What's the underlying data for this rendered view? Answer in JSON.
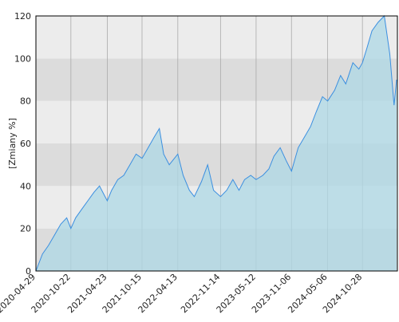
{
  "chart_data": {
    "type": "area",
    "y_label": "[Zmiany %]",
    "x": [
      "2020-04-29",
      "2020-06-01",
      "2020-07-01",
      "2020-08-01",
      "2020-09-01",
      "2020-10-01",
      "2020-10-22",
      "2020-11-15",
      "2020-12-15",
      "2021-01-15",
      "2021-02-15",
      "2021-03-15",
      "2021-04-23",
      "2021-05-15",
      "2021-06-15",
      "2021-07-15",
      "2021-08-15",
      "2021-09-15",
      "2021-10-15",
      "2021-11-15",
      "2021-12-15",
      "2022-01-10",
      "2022-02-01",
      "2022-03-01",
      "2022-04-13",
      "2022-05-10",
      "2022-06-10",
      "2022-07-05",
      "2022-08-10",
      "2022-09-10",
      "2022-10-10",
      "2022-11-14",
      "2022-12-15",
      "2023-01-15",
      "2023-02-15",
      "2023-03-15",
      "2023-04-15",
      "2023-05-12",
      "2023-06-15",
      "2023-07-15",
      "2023-08-10",
      "2023-09-10",
      "2023-10-10",
      "2023-11-06",
      "2023-12-10",
      "2024-01-10",
      "2024-02-10",
      "2024-03-10",
      "2024-04-10",
      "2024-05-06",
      "2024-06-10",
      "2024-07-10",
      "2024-08-05",
      "2024-09-10",
      "2024-10-10",
      "2024-10-28",
      "2024-11-20",
      "2024-12-15",
      "2025-01-15",
      "2025-02-15",
      "2025-03-15",
      "2025-04-05",
      "2025-04-18"
    ],
    "series": [
      {
        "name": "Zmiany",
        "color": "#3b8fe0",
        "fill": "#add8e6",
        "values": [
          0,
          8,
          12,
          17,
          22,
          25,
          20,
          25,
          29,
          33,
          37,
          40,
          33,
          38,
          43,
          45,
          50,
          55,
          53,
          58,
          63,
          67,
          55,
          50,
          55,
          45,
          38,
          35,
          42,
          50,
          38,
          35,
          38,
          43,
          38,
          43,
          45,
          43,
          45,
          48,
          54,
          58,
          52,
          47,
          58,
          63,
          68,
          75,
          82,
          80,
          85,
          92,
          88,
          98,
          95,
          98,
          105,
          113,
          117,
          120,
          102,
          78,
          90
        ]
      }
    ],
    "xlim": [
      "2020-04-29",
      "2025-04-22"
    ],
    "xticks": [
      "2020-04-29",
      "2020-10-22",
      "2021-04-23",
      "2021-10-15",
      "2022-04-13",
      "2022-11-14",
      "2023-05-12",
      "2023-11-06",
      "2024-05-06",
      "2024-10-28"
    ],
    "ylim": [
      0,
      120
    ],
    "yticks": [
      0,
      20,
      40,
      60,
      80,
      100,
      120
    ],
    "grid": true
  }
}
